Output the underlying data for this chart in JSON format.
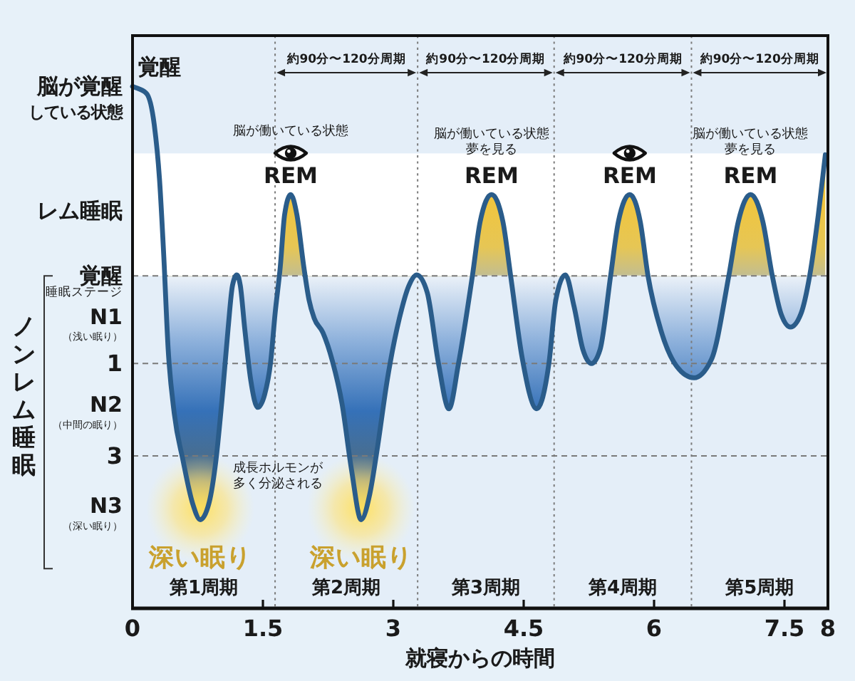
{
  "chart_data": {
    "type": "line",
    "xlabel": "就寝からの時間",
    "ylabel": "ノンレム睡眠",
    "xlim": [
      0,
      8
    ],
    "ylim": [
      6.3,
      -6.1
    ],
    "xticks": [
      0,
      1.5,
      3,
      4.5,
      6,
      7.5,
      8
    ],
    "yticks": [
      {
        "value": -5.0,
        "label": "脳が覚醒"
      },
      {
        "value": -4.45,
        "label": "している状態"
      },
      {
        "value": -2.3,
        "label": "レム睡眠"
      },
      {
        "value": -0.9,
        "label": "覚醒"
      },
      {
        "value": 0.2,
        "label": "N1\n（浅い眠り）"
      },
      1,
      {
        "value": 2.1,
        "label": "N2\n（中間の眠り）"
      },
      3,
      {
        "value": 4.3,
        "label": "N3\n（深い眠り）"
      }
    ],
    "x": [
      0,
      0.16,
      0.25,
      0.31,
      0.36,
      0.41,
      0.48,
      0.58,
      0.69,
      0.78,
      0.88,
      0.96,
      1.03,
      1.1,
      1.15,
      1.2,
      1.24,
      1.29,
      1.36,
      1.44,
      1.52,
      1.59,
      1.64,
      1.7,
      1.75,
      1.82,
      1.89,
      1.97,
      2.03,
      2.09,
      2.19,
      2.3,
      2.41,
      2.52,
      2.63,
      2.73,
      2.82,
      2.93,
      3.07,
      3.18,
      3.27,
      3.39,
      3.52,
      3.64,
      3.75,
      3.91,
      4.0,
      4.13,
      4.26,
      4.35,
      4.48,
      4.65,
      4.79,
      4.87,
      4.98,
      5.08,
      5.18,
      5.28,
      5.38,
      5.5,
      5.59,
      5.72,
      5.84,
      5.93,
      6.08,
      6.26,
      6.46,
      6.66,
      6.86,
      6.97,
      7.11,
      7.25,
      7.36,
      7.46,
      7.57,
      7.69,
      7.79,
      7.89,
      7.97
    ],
    "series": [
      {
        "color": "#2a5c8a",
        "values": [
          -5.0,
          -4.85,
          -4.17,
          -3.0,
          -1.31,
          0.69,
          2.08,
          3.09,
          4.02,
          4.38,
          4.02,
          3.09,
          1.77,
          0.23,
          -0.69,
          -0.92,
          -0.69,
          0.23,
          1.36,
          1.95,
          1.67,
          0.95,
          -0.08,
          -1.1,
          -2.23,
          -2.66,
          -2.23,
          -1.1,
          -0.38,
          0.02,
          0.33,
          0.95,
          1.87,
          3.31,
          4.38,
          3.82,
          2.79,
          1.36,
          0.02,
          -0.69,
          -0.92,
          -0.54,
          1.0,
          1.98,
          1.0,
          -0.9,
          -2.08,
          -2.66,
          -2.08,
          -0.9,
          0.85,
          1.98,
          1.0,
          -0.38,
          -0.92,
          -0.23,
          0.69,
          1.0,
          0.69,
          -0.9,
          -2.08,
          -2.66,
          -2.08,
          -0.9,
          0.29,
          1.06,
          1.31,
          0.91,
          -0.9,
          -2.08,
          -2.66,
          -2.08,
          -0.9,
          -0.08,
          0.21,
          -0.08,
          -0.9,
          -2.23,
          -3.52
        ]
      }
    ],
    "ref_lines": [
      {
        "axis": "y",
        "value": -0.9,
        "line_style": "dashed",
        "color": "#7a7a7a"
      },
      {
        "axis": "y",
        "value": 1,
        "line_style": "dashed",
        "color": "#7a7a7a"
      },
      {
        "axis": "y",
        "value": 3,
        "line_style": "dashed",
        "color": "#7a7a7a"
      },
      {
        "axis": "x",
        "value": 1.64,
        "line_style": "dotted",
        "color": "#7a7a7a"
      },
      {
        "axis": "x",
        "value": 3.28,
        "line_style": "dotted",
        "color": "#7a7a7a"
      },
      {
        "axis": "x",
        "value": 4.85,
        "line_style": "dotted",
        "color": "#7a7a7a"
      },
      {
        "axis": "x",
        "value": 6.43,
        "line_style": "dotted",
        "color": "#7a7a7a"
      }
    ],
    "bands": [
      {
        "axis": "y",
        "from": -3.55,
        "to": -0.9,
        "color": "#ffffff"
      }
    ],
    "annotations": [
      "覚醒",
      "約90分〜120分周期",
      "約90分〜120分周期",
      "約90分〜120分周期",
      "約90分〜120分周期",
      "脳が働いている状態",
      "REM",
      "脳が働いている状態夢を見る",
      "REM",
      "REM",
      "脳が働いている状態夢を見る",
      "REM",
      {
        "text": "成長ホルモンが多く分泌される",
        "x": 1.67,
        "y": 3.45
      },
      "深い眠り",
      "深い眠り",
      "第1周期",
      "第2周期",
      "第3周期",
      "第4周期",
      "第5周期",
      "睡眠ステージ"
    ]
  }
}
